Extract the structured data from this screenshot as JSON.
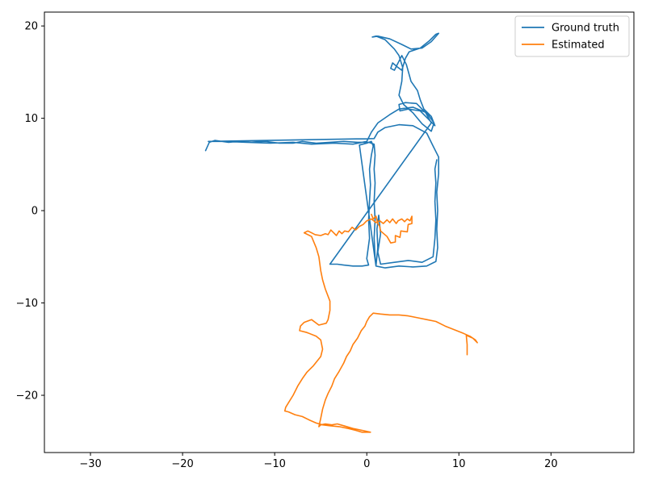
{
  "chart_data": {
    "type": "line",
    "title": "",
    "xlabel": "",
    "ylabel": "",
    "xlim": [
      -35,
      29
    ],
    "ylim": [
      -26.2,
      21.5
    ],
    "xticks": [
      -30,
      -20,
      -10,
      0,
      10,
      20
    ],
    "yticks": [
      -20,
      -10,
      0,
      10,
      20
    ],
    "xtick_labels": [
      "−30",
      "−20",
      "−10",
      "0",
      "10",
      "20"
    ],
    "ytick_labels": [
      "−20",
      "−10",
      "0",
      "10",
      "20"
    ],
    "grid": false,
    "legend_position": "top-right",
    "series": [
      {
        "name": "Ground truth",
        "color": "#1f77b4",
        "points": [
          [
            -17.5,
            6.5
          ],
          [
            -17.1,
            7.4
          ],
          [
            -16.5,
            7.6
          ],
          [
            -15.0,
            7.4
          ],
          [
            -14.0,
            7.5
          ],
          [
            -12.5,
            7.4
          ],
          [
            -11.0,
            7.5
          ],
          [
            -9.5,
            7.3
          ],
          [
            -8.0,
            7.3
          ],
          [
            -7.0,
            7.5
          ],
          [
            -5.5,
            7.3
          ],
          [
            -4.0,
            7.4
          ],
          [
            -2.5,
            7.5
          ],
          [
            -1.0,
            7.4
          ],
          [
            0.2,
            7.4
          ],
          [
            0.8,
            7.2
          ],
          [
            0.9,
            6.0
          ],
          [
            0.8,
            4.5
          ],
          [
            0.9,
            3.0
          ],
          [
            0.8,
            1.0
          ],
          [
            0.9,
            -1.0
          ],
          [
            0.8,
            -3.0
          ],
          [
            0.9,
            -5.0
          ],
          [
            1.0,
            -6.0
          ],
          [
            2.0,
            -6.2
          ],
          [
            3.5,
            -6.0
          ],
          [
            5.0,
            -6.1
          ],
          [
            6.5,
            -6.0
          ],
          [
            7.5,
            -5.5
          ],
          [
            7.7,
            -4.0
          ],
          [
            7.6,
            -2.0
          ],
          [
            7.7,
            0.0
          ],
          [
            7.6,
            2.0
          ],
          [
            7.8,
            4.0
          ],
          [
            7.8,
            5.8
          ],
          [
            7.2,
            7.0
          ],
          [
            6.5,
            8.4
          ],
          [
            5.0,
            9.2
          ],
          [
            3.5,
            9.3
          ],
          [
            2.0,
            9.0
          ],
          [
            1.2,
            8.5
          ],
          [
            0.8,
            7.8
          ],
          [
            -17.2,
            7.5
          ],
          [
            -15.5,
            7.5
          ],
          [
            -13.0,
            7.4
          ],
          [
            -10.5,
            7.3
          ],
          [
            -8.0,
            7.4
          ],
          [
            -6.0,
            7.2
          ],
          [
            -3.5,
            7.3
          ],
          [
            -1.5,
            7.2
          ],
          [
            0.0,
            7.5
          ],
          [
            0.5,
            8.5
          ],
          [
            1.2,
            9.5
          ],
          [
            2.5,
            10.4
          ],
          [
            3.5,
            11.0
          ],
          [
            5.0,
            11.2
          ],
          [
            6.5,
            10.6
          ],
          [
            7.3,
            9.5
          ],
          [
            7.0,
            8.6
          ],
          [
            6.0,
            9.4
          ],
          [
            5.0,
            10.6
          ],
          [
            4.0,
            11.5
          ],
          [
            3.5,
            12.5
          ],
          [
            3.8,
            14.0
          ],
          [
            3.9,
            15.5
          ],
          [
            3.5,
            16.8
          ],
          [
            3.0,
            17.5
          ],
          [
            2.0,
            18.5
          ],
          [
            1.0,
            18.9
          ],
          [
            0.6,
            18.8
          ],
          [
            1.2,
            18.9
          ],
          [
            2.5,
            18.6
          ],
          [
            3.8,
            18.0
          ],
          [
            4.8,
            17.5
          ],
          [
            6.0,
            17.6
          ],
          [
            7.0,
            18.3
          ],
          [
            7.8,
            19.2
          ],
          [
            7.5,
            19.1
          ],
          [
            6.8,
            18.4
          ],
          [
            5.8,
            17.6
          ],
          [
            4.6,
            17.2
          ],
          [
            4.2,
            16.5
          ],
          [
            3.8,
            15.2
          ],
          [
            3.4,
            15.5
          ],
          [
            2.8,
            16.0
          ],
          [
            2.6,
            15.4
          ],
          [
            3.0,
            15.2
          ],
          [
            3.8,
            16.8
          ],
          [
            4.3,
            15.8
          ],
          [
            4.8,
            14.0
          ],
          [
            5.5,
            13.0
          ],
          [
            5.8,
            12.0
          ],
          [
            6.2,
            11.0
          ],
          [
            7.0,
            10.2
          ],
          [
            7.4,
            9.2
          ],
          [
            6.8,
            9.8
          ],
          [
            5.8,
            10.8
          ],
          [
            4.5,
            11.0
          ],
          [
            3.6,
            10.8
          ],
          [
            3.5,
            11.5
          ],
          [
            4.2,
            11.7
          ],
          [
            5.4,
            11.6
          ],
          [
            6.4,
            10.6
          ],
          [
            7.0,
            9.5
          ],
          [
            -4.0,
            -5.8
          ],
          [
            -3.2,
            -5.8
          ],
          [
            -2.5,
            -5.9
          ],
          [
            -1.5,
            -6.0
          ],
          [
            -0.5,
            -6.0
          ],
          [
            0.2,
            -5.9
          ],
          [
            0.0,
            -5.2
          ],
          [
            0.3,
            -3.0
          ],
          [
            0.2,
            -1.0
          ],
          [
            0.3,
            1.0
          ],
          [
            0.4,
            2.8
          ],
          [
            0.3,
            4.5
          ],
          [
            0.5,
            6.0
          ],
          [
            0.7,
            7.0
          ],
          [
            0.5,
            7.5
          ],
          [
            0.0,
            7.3
          ],
          [
            -0.8,
            7.1
          ],
          [
            1.0,
            -6.0
          ],
          [
            1.2,
            -4.0
          ],
          [
            1.1,
            -2.0
          ],
          [
            1.3,
            -0.5
          ],
          [
            1.5,
            -2.5
          ],
          [
            1.2,
            -4.5
          ],
          [
            1.5,
            -5.8
          ],
          [
            3.0,
            -5.6
          ],
          [
            4.5,
            -5.4
          ],
          [
            6.0,
            -5.6
          ],
          [
            7.2,
            -5.0
          ],
          [
            7.4,
            -3.0
          ],
          [
            7.5,
            -1.0
          ],
          [
            7.4,
            1.0
          ],
          [
            7.5,
            3.0
          ],
          [
            7.4,
            4.5
          ],
          [
            7.6,
            5.5
          ]
        ]
      },
      {
        "name": "Estimated",
        "color": "#ff7f0e",
        "points": [
          [
            0.5,
            -0.4
          ],
          [
            0.7,
            -0.9
          ],
          [
            1.0,
            -0.6
          ],
          [
            1.2,
            -1.4
          ],
          [
            1.4,
            -1.7
          ],
          [
            1.5,
            -2.2
          ],
          [
            2.2,
            -2.8
          ],
          [
            2.6,
            -3.5
          ],
          [
            3.1,
            -3.4
          ],
          [
            3.1,
            -2.7
          ],
          [
            3.6,
            -2.9
          ],
          [
            3.7,
            -2.2
          ],
          [
            4.4,
            -2.3
          ],
          [
            4.5,
            -1.5
          ],
          [
            4.9,
            -1.4
          ],
          [
            4.9,
            -0.6
          ],
          [
            4.7,
            -1.1
          ],
          [
            4.4,
            -0.9
          ],
          [
            4.1,
            -1.2
          ],
          [
            3.8,
            -0.9
          ],
          [
            3.4,
            -1.1
          ],
          [
            3.2,
            -1.4
          ],
          [
            2.8,
            -0.9
          ],
          [
            2.5,
            -1.3
          ],
          [
            2.2,
            -1.0
          ],
          [
            1.8,
            -1.4
          ],
          [
            1.4,
            -1.1
          ],
          [
            1.0,
            -1.3
          ],
          [
            0.5,
            -0.9
          ],
          [
            0.0,
            -1.1
          ],
          [
            -0.4,
            -1.5
          ],
          [
            -0.8,
            -1.7
          ],
          [
            -1.2,
            -2.1
          ],
          [
            -1.6,
            -1.8
          ],
          [
            -2.0,
            -2.3
          ],
          [
            -2.4,
            -2.2
          ],
          [
            -2.7,
            -2.5
          ],
          [
            -3.0,
            -2.2
          ],
          [
            -3.3,
            -2.7
          ],
          [
            -3.6,
            -2.4
          ],
          [
            -3.9,
            -2.1
          ],
          [
            -4.2,
            -2.6
          ],
          [
            -4.5,
            -2.5
          ],
          [
            -5.0,
            -2.7
          ],
          [
            -5.6,
            -2.6
          ],
          [
            -6.0,
            -2.4
          ],
          [
            -6.4,
            -2.2
          ],
          [
            -6.8,
            -2.4
          ],
          [
            -6.0,
            -2.8
          ],
          [
            -5.5,
            -4.0
          ],
          [
            -5.2,
            -5.0
          ],
          [
            -5.0,
            -6.5
          ],
          [
            -4.8,
            -7.5
          ],
          [
            -4.5,
            -8.5
          ],
          [
            -4.0,
            -9.8
          ],
          [
            -4.0,
            -10.8
          ],
          [
            -4.2,
            -11.8
          ],
          [
            -4.4,
            -12.2
          ],
          [
            -5.2,
            -12.4
          ],
          [
            -6.0,
            -11.8
          ],
          [
            -6.8,
            -12.1
          ],
          [
            -7.2,
            -12.5
          ],
          [
            -7.3,
            -13.0
          ],
          [
            -6.5,
            -13.2
          ],
          [
            -5.5,
            -13.6
          ],
          [
            -5.0,
            -14.0
          ],
          [
            -4.8,
            -15.0
          ],
          [
            -5.0,
            -15.8
          ],
          [
            -5.4,
            -16.3
          ],
          [
            -5.8,
            -16.8
          ],
          [
            -6.5,
            -17.5
          ],
          [
            -7.0,
            -18.2
          ],
          [
            -7.5,
            -19.0
          ],
          [
            -8.0,
            -20.0
          ],
          [
            -8.5,
            -20.8
          ],
          [
            -8.8,
            -21.3
          ],
          [
            -8.9,
            -21.7
          ],
          [
            -8.5,
            -21.8
          ],
          [
            -7.8,
            -22.1
          ],
          [
            -7.0,
            -22.3
          ],
          [
            -6.2,
            -22.7
          ],
          [
            -5.5,
            -23.0
          ],
          [
            -4.8,
            -23.2
          ],
          [
            -4.0,
            -23.3
          ],
          [
            -3.0,
            -23.4
          ],
          [
            -2.0,
            -23.6
          ],
          [
            -1.2,
            -23.8
          ],
          [
            -0.5,
            -24.0
          ],
          [
            0.4,
            -24.0
          ],
          [
            -0.5,
            -23.8
          ],
          [
            -1.5,
            -23.6
          ],
          [
            -2.5,
            -23.3
          ],
          [
            -3.2,
            -23.1
          ],
          [
            -3.8,
            -23.2
          ],
          [
            -4.5,
            -23.1
          ],
          [
            -5.0,
            -23.2
          ],
          [
            -5.2,
            -23.4
          ],
          [
            -5.0,
            -22.5
          ],
          [
            -4.8,
            -21.5
          ],
          [
            -4.5,
            -20.5
          ],
          [
            -4.2,
            -19.8
          ],
          [
            -3.8,
            -19.0
          ],
          [
            -3.5,
            -18.2
          ],
          [
            -3.0,
            -17.4
          ],
          [
            -2.5,
            -16.5
          ],
          [
            -2.2,
            -15.8
          ],
          [
            -1.8,
            -15.2
          ],
          [
            -1.5,
            -14.5
          ],
          [
            -1.0,
            -13.8
          ],
          [
            -0.6,
            -13.0
          ],
          [
            -0.2,
            -12.5
          ],
          [
            0.0,
            -12.0
          ],
          [
            0.3,
            -11.5
          ],
          [
            0.7,
            -11.1
          ],
          [
            1.5,
            -11.2
          ],
          [
            2.5,
            -11.3
          ],
          [
            3.5,
            -11.3
          ],
          [
            4.5,
            -11.4
          ],
          [
            5.5,
            -11.6
          ],
          [
            6.5,
            -11.8
          ],
          [
            7.5,
            -12.0
          ],
          [
            8.5,
            -12.5
          ],
          [
            9.5,
            -12.9
          ],
          [
            10.5,
            -13.3
          ],
          [
            11.2,
            -13.6
          ],
          [
            11.8,
            -14.0
          ],
          [
            12.0,
            -14.3
          ],
          [
            11.5,
            -13.8
          ],
          [
            10.8,
            -13.5
          ],
          [
            10.9,
            -14.5
          ],
          [
            10.9,
            -15.6
          ]
        ]
      }
    ]
  }
}
